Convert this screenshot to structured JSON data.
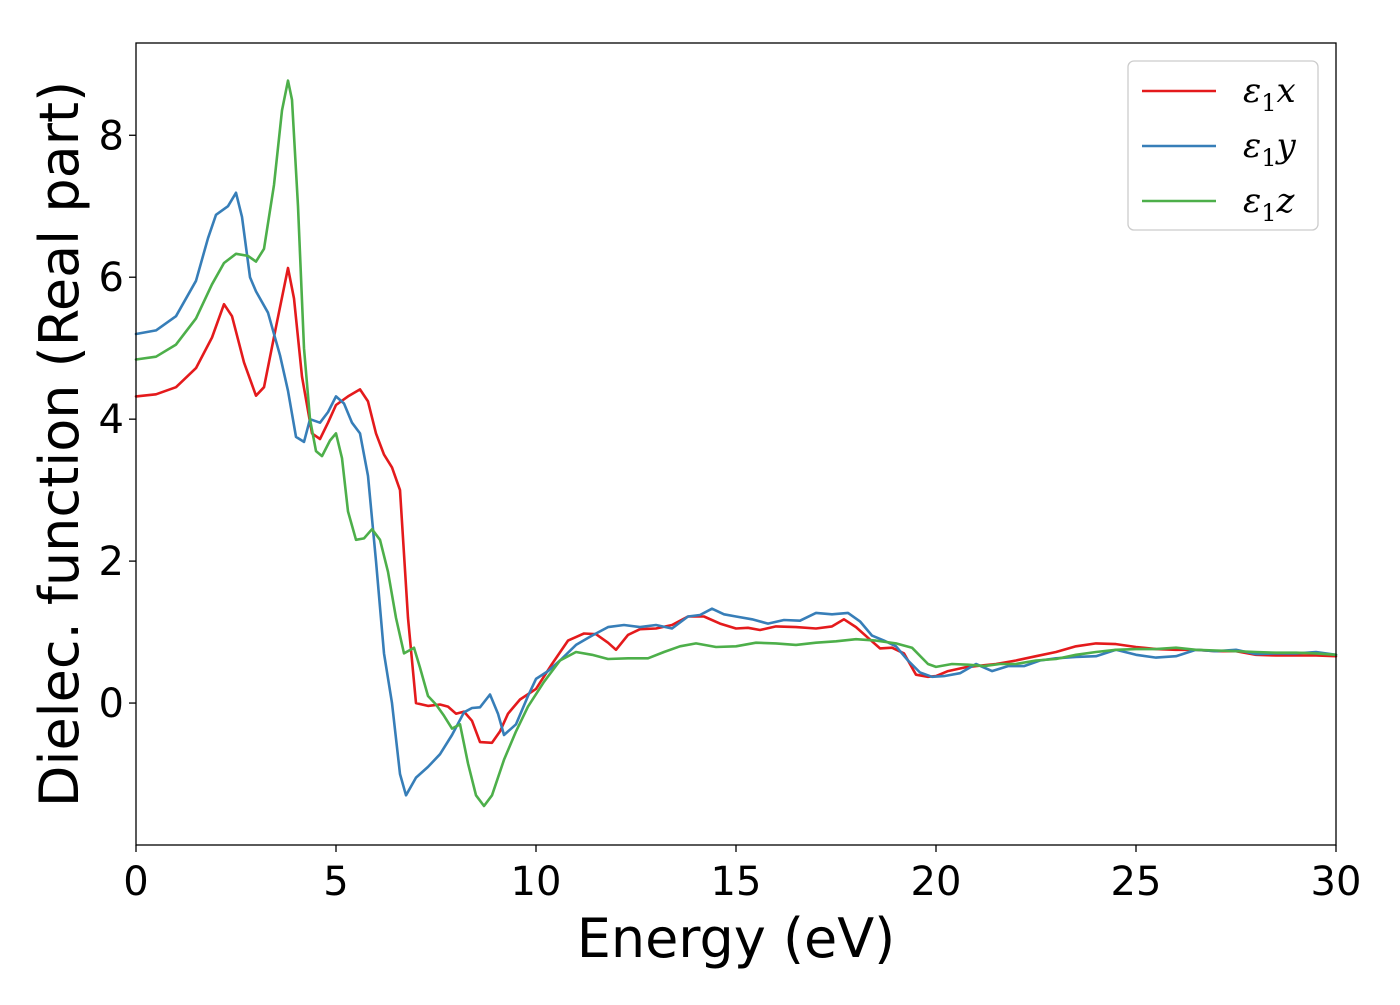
{
  "chart_data": {
    "type": "line",
    "xlabel": "Energy (eV)",
    "ylabel": "Dielec. function (Real part)",
    "xlim": [
      0,
      30
    ],
    "ylim": [
      -2.0,
      9.3
    ],
    "xticks": [
      0,
      5,
      10,
      15,
      20,
      25,
      30
    ],
    "xtick_labels": [
      "0",
      "5",
      "10",
      "15",
      "20",
      "25",
      "30"
    ],
    "yticks": [
      0,
      2,
      4,
      6,
      8
    ],
    "ytick_labels": [
      "0",
      "2",
      "4",
      "6",
      "8"
    ],
    "grid": false,
    "legend_placement": "top-right",
    "series": [
      {
        "name": "ε1x",
        "legend": {
          "base": "ε",
          "sub": "1",
          "comp": "x"
        },
        "color": "#e41a1c",
        "points": [
          [
            0,
            4.32
          ],
          [
            0.5,
            4.35
          ],
          [
            1.0,
            4.45
          ],
          [
            1.5,
            4.72
          ],
          [
            1.9,
            5.15
          ],
          [
            2.2,
            5.62
          ],
          [
            2.4,
            5.45
          ],
          [
            2.7,
            4.8
          ],
          [
            3.0,
            4.33
          ],
          [
            3.2,
            4.45
          ],
          [
            3.5,
            5.3
          ],
          [
            3.8,
            6.13
          ],
          [
            3.95,
            5.7
          ],
          [
            4.15,
            4.6
          ],
          [
            4.4,
            3.8
          ],
          [
            4.6,
            3.72
          ],
          [
            4.8,
            3.95
          ],
          [
            5.0,
            4.2
          ],
          [
            5.3,
            4.32
          ],
          [
            5.6,
            4.42
          ],
          [
            5.8,
            4.25
          ],
          [
            6.0,
            3.8
          ],
          [
            6.2,
            3.5
          ],
          [
            6.4,
            3.32
          ],
          [
            6.6,
            3.0
          ],
          [
            6.8,
            1.2
          ],
          [
            7.0,
            0.0
          ],
          [
            7.3,
            -0.04
          ],
          [
            7.6,
            -0.02
          ],
          [
            7.8,
            -0.05
          ],
          [
            8.0,
            -0.15
          ],
          [
            8.2,
            -0.12
          ],
          [
            8.4,
            -0.25
          ],
          [
            8.6,
            -0.55
          ],
          [
            8.9,
            -0.56
          ],
          [
            9.1,
            -0.4
          ],
          [
            9.3,
            -0.15
          ],
          [
            9.6,
            0.05
          ],
          [
            10.0,
            0.2
          ],
          [
            10.4,
            0.55
          ],
          [
            10.8,
            0.88
          ],
          [
            11.2,
            0.98
          ],
          [
            11.5,
            0.97
          ],
          [
            11.8,
            0.85
          ],
          [
            12.0,
            0.75
          ],
          [
            12.3,
            0.96
          ],
          [
            12.6,
            1.04
          ],
          [
            13.0,
            1.05
          ],
          [
            13.4,
            1.1
          ],
          [
            13.8,
            1.22
          ],
          [
            14.2,
            1.22
          ],
          [
            14.6,
            1.12
          ],
          [
            15.0,
            1.05
          ],
          [
            15.3,
            1.06
          ],
          [
            15.6,
            1.03
          ],
          [
            16.0,
            1.08
          ],
          [
            16.5,
            1.07
          ],
          [
            17.0,
            1.05
          ],
          [
            17.4,
            1.08
          ],
          [
            17.7,
            1.18
          ],
          [
            18.0,
            1.07
          ],
          [
            18.3,
            0.92
          ],
          [
            18.6,
            0.77
          ],
          [
            18.9,
            0.78
          ],
          [
            19.2,
            0.7
          ],
          [
            19.5,
            0.4
          ],
          [
            19.8,
            0.37
          ],
          [
            20.0,
            0.38
          ],
          [
            20.3,
            0.45
          ],
          [
            20.7,
            0.5
          ],
          [
            21.0,
            0.52
          ],
          [
            21.5,
            0.55
          ],
          [
            22.0,
            0.6
          ],
          [
            22.5,
            0.66
          ],
          [
            23.0,
            0.72
          ],
          [
            23.5,
            0.8
          ],
          [
            24.0,
            0.84
          ],
          [
            24.5,
            0.83
          ],
          [
            25.0,
            0.79
          ],
          [
            25.5,
            0.76
          ],
          [
            26.0,
            0.75
          ],
          [
            26.5,
            0.75
          ],
          [
            27.0,
            0.73
          ],
          [
            27.5,
            0.73
          ],
          [
            28.0,
            0.68
          ],
          [
            28.5,
            0.67
          ],
          [
            29.0,
            0.67
          ],
          [
            29.5,
            0.67
          ],
          [
            30.0,
            0.66
          ]
        ]
      },
      {
        "name": "ε1y",
        "legend": {
          "base": "ε",
          "sub": "1",
          "comp": "y"
        },
        "color": "#377eb8",
        "points": [
          [
            0,
            5.2
          ],
          [
            0.5,
            5.25
          ],
          [
            1.0,
            5.45
          ],
          [
            1.5,
            5.95
          ],
          [
            1.8,
            6.55
          ],
          [
            2.0,
            6.88
          ],
          [
            2.3,
            7.0
          ],
          [
            2.5,
            7.19
          ],
          [
            2.65,
            6.85
          ],
          [
            2.85,
            6.0
          ],
          [
            3.0,
            5.8
          ],
          [
            3.3,
            5.5
          ],
          [
            3.6,
            4.9
          ],
          [
            3.8,
            4.4
          ],
          [
            4.0,
            3.75
          ],
          [
            4.2,
            3.68
          ],
          [
            4.35,
            4.0
          ],
          [
            4.6,
            3.95
          ],
          [
            4.8,
            4.1
          ],
          [
            5.0,
            4.32
          ],
          [
            5.2,
            4.22
          ],
          [
            5.4,
            3.95
          ],
          [
            5.6,
            3.8
          ],
          [
            5.8,
            3.2
          ],
          [
            6.0,
            2.0
          ],
          [
            6.2,
            0.7
          ],
          [
            6.4,
            0.0
          ],
          [
            6.6,
            -1.0
          ],
          [
            6.75,
            -1.3
          ],
          [
            7.0,
            -1.05
          ],
          [
            7.3,
            -0.9
          ],
          [
            7.6,
            -0.72
          ],
          [
            7.9,
            -0.45
          ],
          [
            8.2,
            -0.13
          ],
          [
            8.4,
            -0.07
          ],
          [
            8.6,
            -0.06
          ],
          [
            8.85,
            0.12
          ],
          [
            9.05,
            -0.15
          ],
          [
            9.2,
            -0.45
          ],
          [
            9.5,
            -0.3
          ],
          [
            9.8,
            0.1
          ],
          [
            10.0,
            0.34
          ],
          [
            10.3,
            0.45
          ],
          [
            10.6,
            0.6
          ],
          [
            11.0,
            0.82
          ],
          [
            11.4,
            0.95
          ],
          [
            11.8,
            1.07
          ],
          [
            12.2,
            1.1
          ],
          [
            12.6,
            1.07
          ],
          [
            13.0,
            1.1
          ],
          [
            13.4,
            1.05
          ],
          [
            13.8,
            1.22
          ],
          [
            14.1,
            1.24
          ],
          [
            14.4,
            1.33
          ],
          [
            14.7,
            1.25
          ],
          [
            15.0,
            1.22
          ],
          [
            15.4,
            1.18
          ],
          [
            15.8,
            1.12
          ],
          [
            16.2,
            1.17
          ],
          [
            16.6,
            1.16
          ],
          [
            17.0,
            1.27
          ],
          [
            17.4,
            1.25
          ],
          [
            17.8,
            1.27
          ],
          [
            18.1,
            1.15
          ],
          [
            18.4,
            0.95
          ],
          [
            18.7,
            0.88
          ],
          [
            19.0,
            0.8
          ],
          [
            19.3,
            0.6
          ],
          [
            19.6,
            0.43
          ],
          [
            19.9,
            0.37
          ],
          [
            20.2,
            0.38
          ],
          [
            20.6,
            0.42
          ],
          [
            21.0,
            0.55
          ],
          [
            21.4,
            0.45
          ],
          [
            21.8,
            0.52
          ],
          [
            22.2,
            0.52
          ],
          [
            22.6,
            0.6
          ],
          [
            23.0,
            0.63
          ],
          [
            23.5,
            0.65
          ],
          [
            24.0,
            0.66
          ],
          [
            24.5,
            0.75
          ],
          [
            25.0,
            0.68
          ],
          [
            25.5,
            0.64
          ],
          [
            26.0,
            0.66
          ],
          [
            26.5,
            0.75
          ],
          [
            27.0,
            0.73
          ],
          [
            27.5,
            0.75
          ],
          [
            28.0,
            0.69
          ],
          [
            28.5,
            0.7
          ],
          [
            29.0,
            0.7
          ],
          [
            29.5,
            0.72
          ],
          [
            30.0,
            0.68
          ]
        ]
      },
      {
        "name": "ε1z",
        "legend": {
          "base": "ε",
          "sub": "1",
          "comp": "z"
        },
        "color": "#4daf4a",
        "points": [
          [
            0,
            4.84
          ],
          [
            0.5,
            4.88
          ],
          [
            1.0,
            5.05
          ],
          [
            1.5,
            5.42
          ],
          [
            1.9,
            5.9
          ],
          [
            2.2,
            6.2
          ],
          [
            2.5,
            6.33
          ],
          [
            2.8,
            6.3
          ],
          [
            3.0,
            6.22
          ],
          [
            3.2,
            6.4
          ],
          [
            3.45,
            7.3
          ],
          [
            3.65,
            8.35
          ],
          [
            3.8,
            8.77
          ],
          [
            3.9,
            8.5
          ],
          [
            4.05,
            7.0
          ],
          [
            4.2,
            5.0
          ],
          [
            4.35,
            4.0
          ],
          [
            4.5,
            3.55
          ],
          [
            4.65,
            3.48
          ],
          [
            4.85,
            3.7
          ],
          [
            5.0,
            3.8
          ],
          [
            5.15,
            3.45
          ],
          [
            5.3,
            2.7
          ],
          [
            5.5,
            2.3
          ],
          [
            5.7,
            2.32
          ],
          [
            5.9,
            2.45
          ],
          [
            6.1,
            2.3
          ],
          [
            6.3,
            1.85
          ],
          [
            6.5,
            1.2
          ],
          [
            6.7,
            0.7
          ],
          [
            6.95,
            0.78
          ],
          [
            7.1,
            0.5
          ],
          [
            7.3,
            0.1
          ],
          [
            7.5,
            -0.02
          ],
          [
            7.7,
            -0.18
          ],
          [
            7.9,
            -0.36
          ],
          [
            8.1,
            -0.3
          ],
          [
            8.3,
            -0.85
          ],
          [
            8.5,
            -1.3
          ],
          [
            8.7,
            -1.45
          ],
          [
            8.9,
            -1.3
          ],
          [
            9.2,
            -0.8
          ],
          [
            9.5,
            -0.4
          ],
          [
            9.8,
            -0.05
          ],
          [
            10.2,
            0.3
          ],
          [
            10.6,
            0.6
          ],
          [
            11.0,
            0.72
          ],
          [
            11.4,
            0.68
          ],
          [
            11.8,
            0.62
          ],
          [
            12.3,
            0.63
          ],
          [
            12.8,
            0.63
          ],
          [
            13.2,
            0.72
          ],
          [
            13.6,
            0.8
          ],
          [
            14.0,
            0.84
          ],
          [
            14.5,
            0.79
          ],
          [
            15.0,
            0.8
          ],
          [
            15.5,
            0.85
          ],
          [
            16.0,
            0.84
          ],
          [
            16.5,
            0.82
          ],
          [
            17.0,
            0.85
          ],
          [
            17.5,
            0.87
          ],
          [
            18.0,
            0.9
          ],
          [
            18.5,
            0.88
          ],
          [
            19.0,
            0.84
          ],
          [
            19.4,
            0.78
          ],
          [
            19.8,
            0.55
          ],
          [
            20.0,
            0.51
          ],
          [
            20.4,
            0.55
          ],
          [
            20.8,
            0.54
          ],
          [
            21.2,
            0.52
          ],
          [
            21.6,
            0.55
          ],
          [
            22.0,
            0.55
          ],
          [
            22.5,
            0.6
          ],
          [
            23.0,
            0.62
          ],
          [
            23.5,
            0.68
          ],
          [
            24.0,
            0.72
          ],
          [
            24.5,
            0.75
          ],
          [
            25.0,
            0.76
          ],
          [
            25.5,
            0.76
          ],
          [
            26.0,
            0.78
          ],
          [
            26.5,
            0.75
          ],
          [
            27.0,
            0.74
          ],
          [
            27.5,
            0.73
          ],
          [
            28.0,
            0.72
          ],
          [
            28.5,
            0.71
          ],
          [
            29.0,
            0.71
          ],
          [
            29.5,
            0.7
          ],
          [
            30.0,
            0.68
          ]
        ]
      }
    ]
  }
}
